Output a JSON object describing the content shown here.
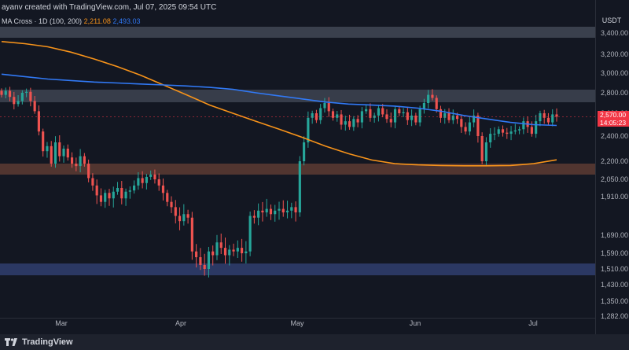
{
  "header": {
    "caption": "ayanv created with TradingView.com, Jul 07, 2025 09:54 UTC",
    "indicator_name": "MA Cross · 1D (100, 200)",
    "ma_fast_value": "2,211.08",
    "ma_slow_value": "2,493.03"
  },
  "price_axis": {
    "currency": "USDT",
    "ticks": [
      "3,400.00",
      "3,200.00",
      "3,000.00",
      "2,800.00",
      "2,600.00",
      "2,400.00",
      "2,200.00",
      "2,050.00",
      "1,910.00",
      "1,690.00",
      "1,590.00",
      "1,510.00",
      "1,430.00",
      "1,350.00",
      "1,282.00"
    ],
    "current_price": "2,570.00",
    "countdown": "14:05:23"
  },
  "time_axis": {
    "labels": [
      "Mar",
      "Apr",
      "May",
      "Jun",
      "Jul"
    ]
  },
  "footer": {
    "brand": "TradingView"
  },
  "colors": {
    "background": "#131722",
    "up_candle": "#26a69a",
    "down_candle": "#ef5350",
    "ma_fast": "#f7931a",
    "ma_slow": "#3179f5",
    "resistance_zone": "#555c6b",
    "support_zone": "#7c4a3a",
    "low_zone": "#3c4f8f",
    "price_badge": "#f23645"
  },
  "chart_data": {
    "type": "candlestick",
    "symbol_quote": "USDT",
    "timeframe": "1D",
    "x_range": [
      "2025-02-03",
      "2025-07-07"
    ],
    "ylim": [
      1282,
      3550
    ],
    "zones": [
      {
        "name": "",
        "low": 3420,
        "high": 3520
      },
      {
        "name": "",
        "low": 2700,
        "high": 2830
      },
      {
        "name": "",
        "low": 2120,
        "high": 2190
      },
      {
        "name": "",
        "low": 1490,
        "high": 1560
      }
    ],
    "ma_fast": [
      3320,
      3300,
      3270,
      3220,
      3150,
      3070,
      2980,
      2880,
      2780,
      2680,
      2600,
      2530,
      2460,
      2390,
      2320,
      2260,
      2210,
      2180,
      2170,
      2165,
      2162,
      2162,
      2165,
      2180,
      2211
    ],
    "ma_slow": [
      2990,
      2965,
      2940,
      2925,
      2910,
      2900,
      2890,
      2880,
      2870,
      2855,
      2835,
      2800,
      2770,
      2740,
      2710,
      2690,
      2680,
      2670,
      2650,
      2620,
      2580,
      2550,
      2520,
      2500,
      2493
    ],
    "closes": [
      2780,
      2820,
      2760,
      2690,
      2720,
      2800,
      2810,
      2720,
      2620,
      2440,
      2280,
      2320,
      2180,
      2350,
      2240,
      2300,
      2230,
      2180,
      2160,
      2240,
      2180,
      2060,
      2000,
      1920,
      1880,
      1940,
      1900,
      1950,
      1980,
      1900,
      1950,
      1960,
      2000,
      2060,
      2020,
      2070,
      2090,
      2050,
      2000,
      1940,
      1880,
      1850,
      1800,
      1770,
      1810,
      1790,
      1600,
      1570,
      1530,
      1510,
      1600,
      1580,
      1650,
      1620,
      1580,
      1610,
      1600,
      1620,
      1590,
      1600,
      1800,
      1790,
      1830,
      1820,
      1840,
      1810,
      1830,
      1840,
      1820,
      1830,
      1850,
      1820,
      2200,
      2350,
      2560,
      2600,
      2540,
      2650,
      2700,
      2620,
      2560,
      2590,
      2500,
      2530,
      2480,
      2550,
      2520,
      2620,
      2640,
      2560,
      2580,
      2650,
      2590,
      2550,
      2520,
      2640,
      2600,
      2610,
      2540,
      2580,
      2520,
      2640,
      2700,
      2780,
      2750,
      2640,
      2560,
      2600,
      2540,
      2580,
      2550,
      2480,
      2440,
      2520,
      2580,
      2400,
      2200,
      2350,
      2420,
      2420,
      2460,
      2430,
      2420,
      2440,
      2450,
      2460,
      2530,
      2480,
      2420,
      2530,
      2600,
      2560,
      2520,
      2590,
      2570
    ]
  }
}
